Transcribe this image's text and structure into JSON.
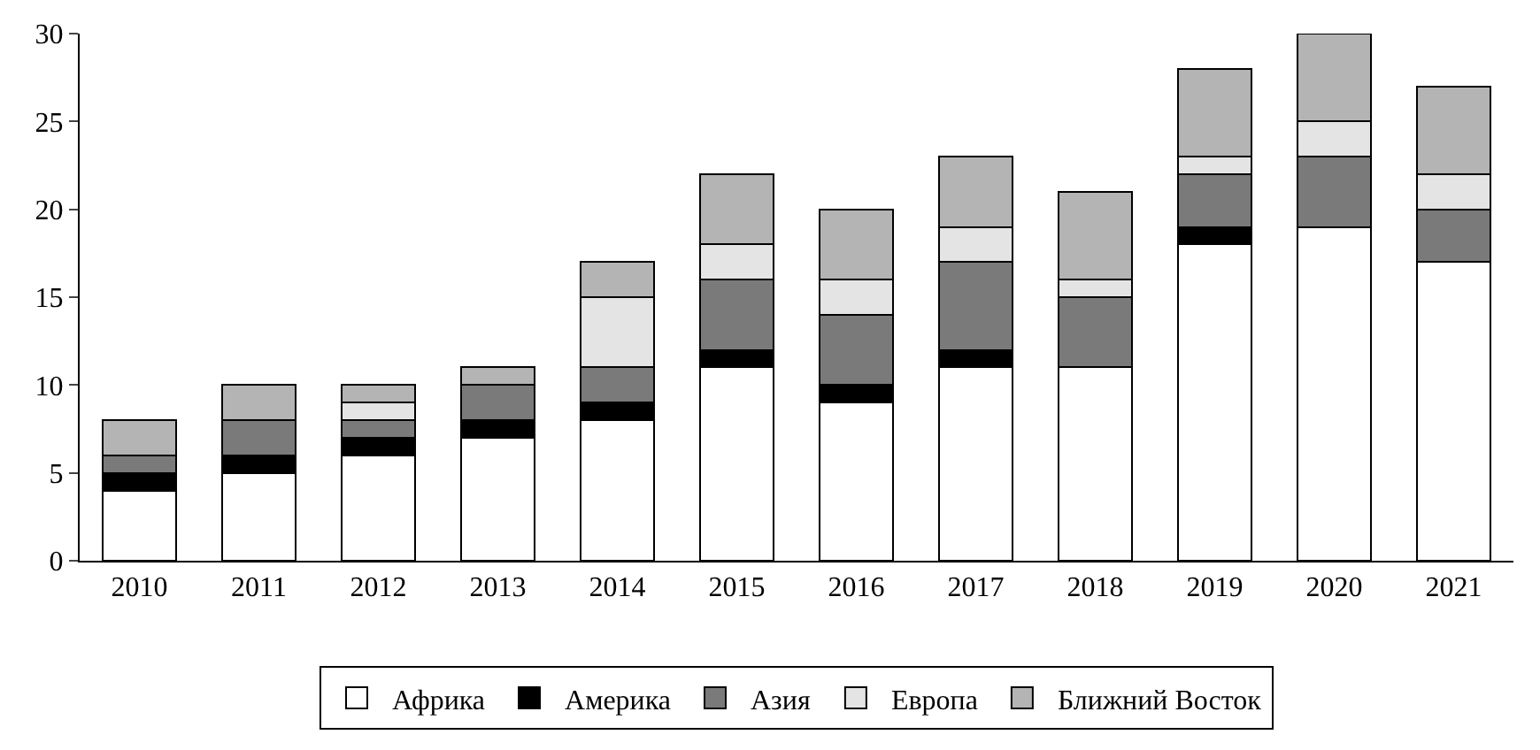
{
  "chart_data": {
    "type": "bar",
    "stacked": true,
    "categories": [
      "2010",
      "2011",
      "2012",
      "2013",
      "2014",
      "2015",
      "2016",
      "2017",
      "2018",
      "2019",
      "2020",
      "2021"
    ],
    "series": [
      {
        "name": "Африка",
        "color": "#ffffff",
        "values": [
          4,
          5,
          6,
          7,
          8,
          11,
          9,
          11,
          11,
          18,
          19,
          17
        ]
      },
      {
        "name": "Америка",
        "color": "#000000",
        "values": [
          1,
          1,
          1,
          1,
          1,
          1,
          1,
          1,
          0,
          1,
          0,
          0
        ]
      },
      {
        "name": "Азия",
        "color": "#7a7a7a",
        "values": [
          1,
          2,
          1,
          2,
          2,
          4,
          4,
          5,
          4,
          3,
          4,
          3
        ]
      },
      {
        "name": "Европа",
        "color": "#e4e4e4",
        "values": [
          0,
          0,
          1,
          0,
          4,
          2,
          2,
          2,
          1,
          1,
          2,
          2
        ]
      },
      {
        "name": "Ближний Восток",
        "color": "#b4b4b4",
        "values": [
          2,
          2,
          1,
          1,
          2,
          4,
          4,
          4,
          5,
          5,
          5,
          5
        ]
      }
    ],
    "ylim": [
      0,
      30
    ],
    "yticks": [
      0,
      5,
      10,
      15,
      20,
      25,
      30
    ],
    "legend": "bottom"
  }
}
